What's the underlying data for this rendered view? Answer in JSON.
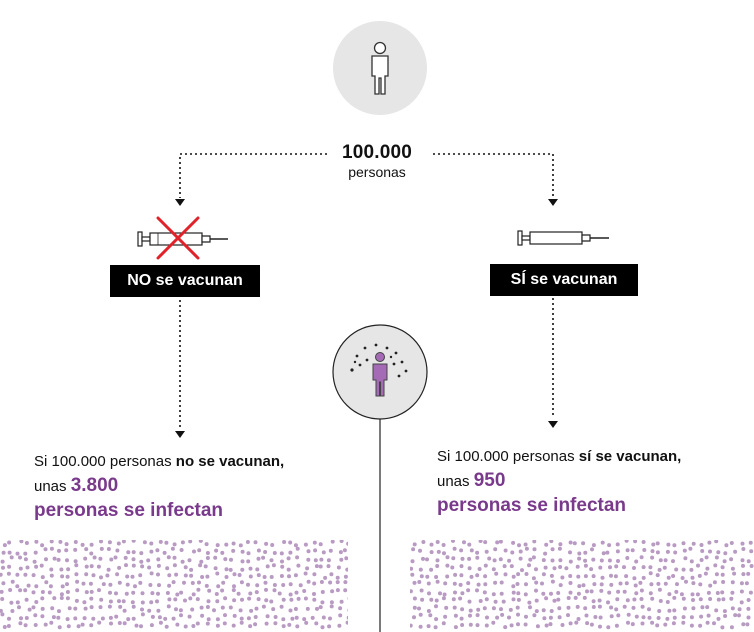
{
  "total": {
    "number": "100.000",
    "unit": "personas"
  },
  "branches": {
    "no": {
      "label": "NO se vacunan",
      "result_pre": "Si 100.000 personas ",
      "result_bold1": "no se vacunan,",
      "result_mid": " unas ",
      "result_num": "3.800",
      "result_hl": "personas se infectan",
      "infected_per_100000": 3800
    },
    "si": {
      "label": "SÍ se vacunan",
      "result_pre": "Si 100.000 personas ",
      "result_bold1": "sí se vacunan,",
      "result_mid": " unas ",
      "result_num": "950",
      "result_hl": "personas se infectan",
      "infected_per_100000": 950
    }
  },
  "icons": {
    "person": "person-icon",
    "syringe": "syringe-icon",
    "cross": "red-cross-icon",
    "infected_person": "infected-person-icon"
  },
  "colors": {
    "accent": "#7a3a8c",
    "dot": "#b89ac2",
    "cross": "#e0232a",
    "circle_bg": "#e6e6e6"
  }
}
